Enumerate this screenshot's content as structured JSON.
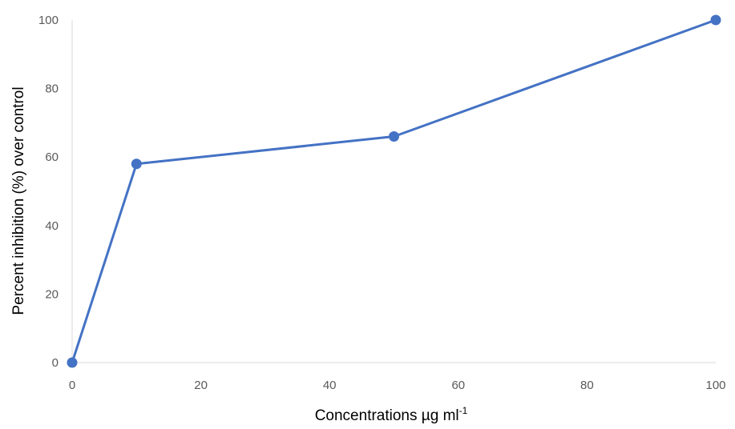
{
  "colors": {
    "series": "#4472C4",
    "axis": "#D9D9D9",
    "tick_text": "#595959",
    "title_text": "#000000"
  },
  "chart_data": {
    "type": "scatter",
    "lines": true,
    "markers": true,
    "title": "",
    "xlabel": "Concentrations µg ml",
    "xlabel_superscript": "-1",
    "ylabel": "Percent inhibition (%) over control",
    "xlim": [
      0,
      100
    ],
    "ylim": [
      0,
      100
    ],
    "x_ticks": [
      0,
      20,
      40,
      60,
      80,
      100
    ],
    "y_ticks": [
      0,
      20,
      40,
      60,
      80,
      100
    ],
    "x_tick_labels": [
      "0",
      "20",
      "40",
      "60",
      "80",
      "100"
    ],
    "y_tick_labels": [
      "0",
      "20",
      "40",
      "60",
      "80",
      "100"
    ],
    "grid": false,
    "legend": "none",
    "series": [
      {
        "x": [
          0,
          10,
          50,
          100
        ],
        "y": [
          0,
          58,
          66,
          100
        ]
      }
    ]
  }
}
